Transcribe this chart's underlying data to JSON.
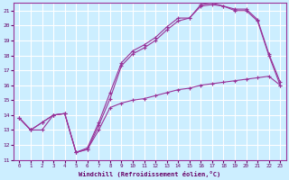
{
  "background_color": "#cceeff",
  "grid_color": "#ffffff",
  "line_color": "#993399",
  "xlim": [
    -0.5,
    23.5
  ],
  "ylim": [
    11,
    21.5
  ],
  "yticks": [
    11,
    12,
    13,
    14,
    15,
    16,
    17,
    18,
    19,
    20,
    21
  ],
  "xticks": [
    0,
    1,
    2,
    3,
    4,
    5,
    6,
    7,
    8,
    9,
    10,
    11,
    12,
    13,
    14,
    15,
    16,
    17,
    18,
    19,
    20,
    21,
    22,
    23
  ],
  "xlabel": "Windchill (Refroidissement éolien,°C)",
  "curve1_x": [
    0,
    1,
    2,
    3,
    4,
    5,
    6,
    7,
    8,
    9,
    10,
    11,
    12,
    13,
    14,
    15,
    16,
    17,
    18,
    19,
    20,
    21,
    22,
    23
  ],
  "curve1_y": [
    13.8,
    13.0,
    13.0,
    14.0,
    14.1,
    11.5,
    11.7,
    13.0,
    14.5,
    14.8,
    15.0,
    15.1,
    15.3,
    15.5,
    15.7,
    15.8,
    16.0,
    16.1,
    16.2,
    16.3,
    16.4,
    16.5,
    16.6,
    16.0
  ],
  "curve2_x": [
    0,
    1,
    2,
    3,
    4,
    5,
    6,
    7,
    8,
    9,
    10,
    11,
    12,
    13,
    14,
    15,
    16,
    17,
    18,
    19,
    20,
    21,
    22,
    23
  ],
  "curve2_y": [
    13.8,
    13.0,
    13.5,
    14.0,
    14.1,
    11.5,
    11.7,
    13.3,
    15.1,
    17.3,
    18.1,
    18.5,
    19.0,
    19.7,
    20.3,
    20.5,
    21.3,
    21.4,
    21.3,
    21.0,
    21.0,
    20.3,
    18.0,
    16.0
  ],
  "curve3_x": [
    0,
    1,
    2,
    3,
    4,
    5,
    6,
    7,
    8,
    9,
    10,
    11,
    12,
    13,
    14,
    15,
    16,
    17,
    18,
    19,
    20,
    21,
    22,
    23
  ],
  "curve3_y": [
    13.8,
    13.0,
    13.5,
    14.0,
    14.1,
    11.5,
    11.8,
    13.5,
    15.5,
    17.5,
    18.3,
    18.7,
    19.2,
    19.9,
    20.5,
    20.5,
    21.4,
    21.5,
    21.3,
    21.1,
    21.1,
    20.4,
    18.1,
    16.2
  ]
}
